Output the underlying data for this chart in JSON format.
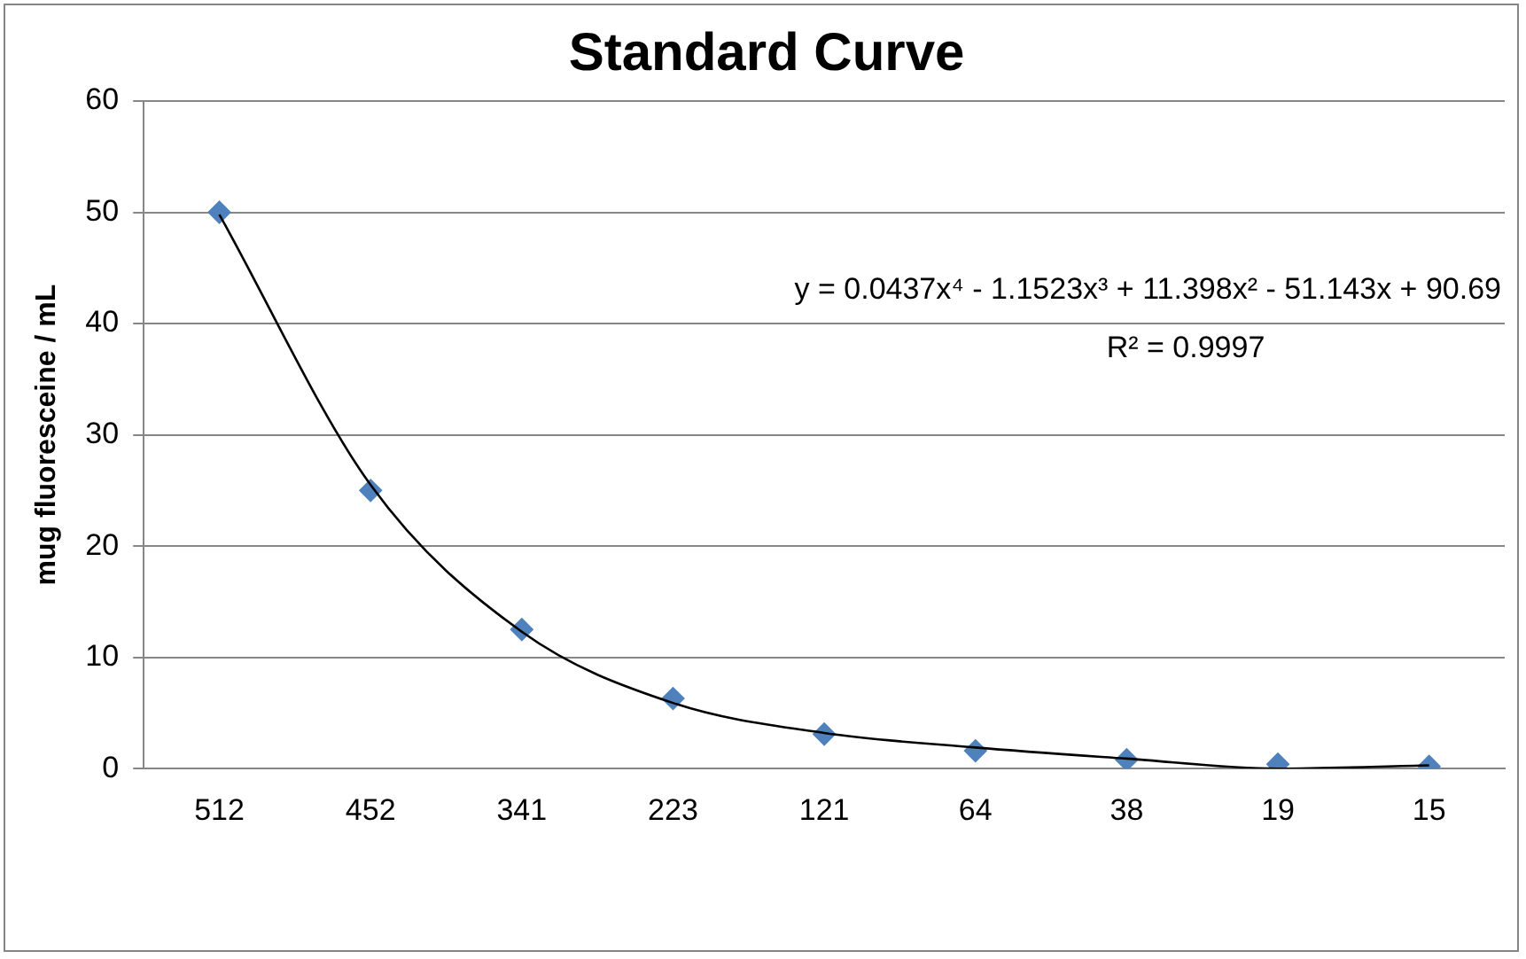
{
  "chart_data": {
    "type": "scatter",
    "title": "Standard Curve",
    "ylabel": "mug fluoresceine / mL",
    "categories": [
      "512",
      "452",
      "341",
      "223",
      "121",
      "64",
      "38",
      "19",
      "15"
    ],
    "series": [
      {
        "color": "#4f81bd",
        "marker": "diamond",
        "values": [
          50,
          25,
          12.5,
          6.3,
          3.1,
          1.6,
          0.8,
          0.4,
          0.2
        ]
      },
      {
        "type": "line",
        "color": "#000000",
        "marker": "none",
        "values": [
          49.8,
          25.5,
          12.3,
          5.9,
          3.2,
          1.9,
          0.9,
          0.0,
          0.3
        ]
      }
    ],
    "ylim": [
      0,
      60
    ],
    "yticks": [
      0,
      10,
      20,
      30,
      40,
      50,
      60
    ],
    "grid": "y",
    "legend": false,
    "annotations": [
      "y = 0.0437x⁴ - 1.1523x³ + 11.398x² - 51.143x + 90.69",
      "R² = 0.9997"
    ]
  }
}
